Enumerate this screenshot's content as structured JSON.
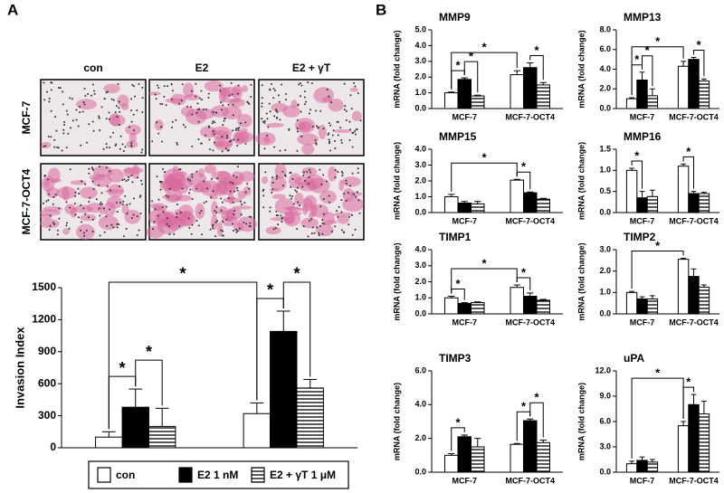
{
  "figure": {
    "panel_a": "A",
    "panel_b": "B",
    "image_columns": [
      "con",
      "E2",
      "E2 + γT"
    ],
    "image_rows": [
      "MCF-7",
      "MCF-7-OCT4"
    ]
  },
  "chart_data": [
    {
      "type": "bar",
      "ylabel": "Invasion Index",
      "categories": [
        "MCF-7",
        "MCF-7-OCT4"
      ],
      "series": [
        {
          "name": "con",
          "color": "#ffffff",
          "values": [
            100,
            320
          ],
          "error": [
            50,
            100
          ]
        },
        {
          "name": "E2 1 nM",
          "color": "#000000",
          "values": [
            380,
            1090
          ],
          "error": [
            170,
            190
          ]
        },
        {
          "name": "E2 + γT 1 μM",
          "color": "#ffffff",
          "hatch": true,
          "values": [
            200,
            560
          ],
          "error": [
            170,
            80
          ]
        }
      ],
      "ylim": [
        0,
        1500
      ],
      "yticks": [
        0,
        300,
        600,
        900,
        1200,
        1500
      ],
      "legend": "bottom",
      "brackets": [
        {
          "label": "*",
          "from": [
            0,
            0
          ],
          "to": [
            0,
            1
          ]
        },
        {
          "label": "*",
          "from": [
            0,
            1
          ],
          "to": [
            0,
            2
          ]
        },
        {
          "label": "*",
          "from": [
            1,
            0
          ],
          "to": [
            1,
            1
          ]
        },
        {
          "label": "*",
          "from": [
            1,
            1
          ],
          "to": [
            1,
            2
          ]
        },
        {
          "label": "*",
          "from": [
            0,
            0
          ],
          "to": [
            1,
            0
          ]
        }
      ]
    },
    {
      "type": "bar",
      "title": "MMP9",
      "ylabel": "mRNA (fold change)",
      "categories": [
        "MCF-7",
        "MCF-7-OCT4"
      ],
      "series": [
        {
          "color": "#ffffff",
          "values": [
            1.0,
            2.15
          ],
          "error": [
            0.05,
            0.25
          ]
        },
        {
          "color": "#000000",
          "values": [
            1.85,
            2.6
          ],
          "error": [
            0.1,
            0.3
          ]
        },
        {
          "color": "#ffffff",
          "hatch": true,
          "values": [
            0.8,
            1.5
          ],
          "error": [
            0.05,
            0.15
          ]
        }
      ],
      "ylim": [
        0,
        5
      ],
      "yticks": [
        {
          "value": 0,
          "label": "0.0"
        },
        {
          "value": 1,
          "label": "1.0"
        },
        {
          "value": 2,
          "label": "2.0"
        },
        {
          "value": 3,
          "label": "3.0"
        },
        {
          "value": 4,
          "label": "4.0"
        },
        {
          "value": 5,
          "label": "5.0"
        }
      ],
      "brackets": [
        {
          "label": "*",
          "from": [
            0,
            0
          ],
          "to": [
            0,
            1
          ]
        },
        {
          "label": "*",
          "from": [
            0,
            1
          ],
          "to": [
            0,
            2
          ]
        },
        {
          "label": "*",
          "from": [
            1,
            1
          ],
          "to": [
            1,
            2
          ]
        },
        {
          "label": "*",
          "from": [
            0,
            0
          ],
          "to": [
            1,
            0
          ]
        }
      ]
    },
    {
      "type": "bar",
      "title": "MMP13",
      "ylabel": "mRNA (fold change)",
      "categories": [
        "MCF-7",
        "MCF-7-OCT4"
      ],
      "series": [
        {
          "color": "#ffffff",
          "values": [
            1.0,
            4.3
          ],
          "error": [
            0.1,
            0.5
          ]
        },
        {
          "color": "#000000",
          "values": [
            2.9,
            5.0
          ],
          "error": [
            0.8,
            0.2
          ]
        },
        {
          "color": "#ffffff",
          "hatch": true,
          "values": [
            1.3,
            2.8
          ],
          "error": [
            0.7,
            0.2
          ]
        }
      ],
      "ylim": [
        0,
        8
      ],
      "yticks": [
        {
          "value": 0,
          "label": "0.0"
        },
        {
          "value": 2,
          "label": "2.0"
        },
        {
          "value": 4,
          "label": "4.0"
        },
        {
          "value": 6,
          "label": "6.0"
        },
        {
          "value": 8,
          "label": "8.0"
        }
      ],
      "brackets": [
        {
          "label": "*",
          "from": [
            0,
            0
          ],
          "to": [
            0,
            1
          ]
        },
        {
          "label": "*",
          "from": [
            0,
            1
          ],
          "to": [
            0,
            2
          ]
        },
        {
          "label": "*",
          "from": [
            1,
            1
          ],
          "to": [
            1,
            2
          ]
        },
        {
          "label": "*",
          "from": [
            0,
            0
          ],
          "to": [
            1,
            0
          ]
        }
      ]
    },
    {
      "type": "bar",
      "title": "MMP15",
      "ylabel": "mRNA (fold change)",
      "categories": [
        "MCF-7",
        "MCF-7-OCT4"
      ],
      "series": [
        {
          "color": "#ffffff",
          "values": [
            1.0,
            2.05
          ],
          "error": [
            0.15,
            0.05
          ]
        },
        {
          "color": "#000000",
          "values": [
            0.6,
            1.25
          ],
          "error": [
            0.1,
            0.05
          ]
        },
        {
          "color": "#ffffff",
          "hatch": true,
          "values": [
            0.55,
            0.85
          ],
          "error": [
            0.15,
            0.05
          ]
        }
      ],
      "ylim": [
        0,
        4
      ],
      "yticks": [
        {
          "value": 0,
          "label": "0.0"
        },
        {
          "value": 1,
          "label": "1.0"
        },
        {
          "value": 2,
          "label": "2.0"
        },
        {
          "value": 3,
          "label": "3.0"
        },
        {
          "value": 4,
          "label": "4.0"
        }
      ],
      "brackets": [
        {
          "label": "*",
          "from": [
            1,
            0
          ],
          "to": [
            1,
            1
          ]
        },
        {
          "label": "*",
          "from": [
            0,
            0
          ],
          "to": [
            1,
            0
          ]
        }
      ]
    },
    {
      "type": "bar",
      "title": "MMP16",
      "ylabel": "mRNA (fold change)",
      "categories": [
        "MCF-7",
        "MCF-7-OCT4"
      ],
      "series": [
        {
          "color": "#ffffff",
          "values": [
            1.0,
            1.1
          ],
          "error": [
            0.05,
            0.05
          ]
        },
        {
          "color": "#000000",
          "values": [
            0.35,
            0.45
          ],
          "error": [
            0.15,
            0.05
          ]
        },
        {
          "color": "#ffffff",
          "hatch": true,
          "values": [
            0.38,
            0.45
          ],
          "error": [
            0.15,
            0.03
          ]
        }
      ],
      "ylim": [
        0,
        1.5
      ],
      "yticks": [
        {
          "value": 0,
          "label": "0.0"
        },
        {
          "value": 0.5,
          "label": "0.5"
        },
        {
          "value": 1,
          "label": "1.0"
        },
        {
          "value": 1.5,
          "label": "1.5"
        }
      ],
      "brackets": [
        {
          "label": "*",
          "from": [
            0,
            0
          ],
          "to": [
            0,
            1
          ]
        },
        {
          "label": "*",
          "from": [
            1,
            0
          ],
          "to": [
            1,
            1
          ]
        }
      ]
    },
    {
      "type": "bar",
      "title": "TIMP1",
      "ylabel": "mRNA (fold change)",
      "categories": [
        "MCF-7",
        "MCF-7-OCT4"
      ],
      "series": [
        {
          "color": "#ffffff",
          "values": [
            1.0,
            1.65
          ],
          "error": [
            0.1,
            0.15
          ]
        },
        {
          "color": "#000000",
          "values": [
            0.65,
            1.1
          ],
          "error": [
            0.05,
            0.2
          ]
        },
        {
          "color": "#ffffff",
          "hatch": true,
          "values": [
            0.7,
            0.85
          ],
          "error": [
            0.05,
            0.05
          ]
        }
      ],
      "ylim": [
        0,
        4
      ],
      "yticks": [
        {
          "value": 0,
          "label": "0.0"
        },
        {
          "value": 1,
          "label": "1.0"
        },
        {
          "value": 2,
          "label": "2.0"
        },
        {
          "value": 3,
          "label": "3.0"
        },
        {
          "value": 4,
          "label": "4.0"
        }
      ],
      "brackets": [
        {
          "label": "*",
          "from": [
            0,
            0
          ],
          "to": [
            0,
            1
          ]
        },
        {
          "label": "*",
          "from": [
            1,
            0
          ],
          "to": [
            1,
            1
          ]
        },
        {
          "label": "*",
          "from": [
            0,
            0
          ],
          "to": [
            1,
            0
          ]
        }
      ]
    },
    {
      "type": "bar",
      "title": "TIMP2",
      "ylabel": "mRNA (fold change)",
      "categories": [
        "MCF-7",
        "MCF-7-OCT4"
      ],
      "series": [
        {
          "color": "#ffffff",
          "values": [
            1.0,
            2.55
          ],
          "error": [
            0.05,
            0.05
          ]
        },
        {
          "color": "#000000",
          "values": [
            0.7,
            1.75
          ],
          "error": [
            0.1,
            0.35
          ]
        },
        {
          "color": "#ffffff",
          "hatch": true,
          "values": [
            0.7,
            1.25
          ],
          "error": [
            0.15,
            0.1
          ]
        }
      ],
      "ylim": [
        0,
        3
      ],
      "yticks": [
        {
          "value": 0,
          "label": "0.0"
        },
        {
          "value": 1,
          "label": "1.0"
        },
        {
          "value": 2,
          "label": "2.0"
        },
        {
          "value": 3,
          "label": "3.0"
        }
      ],
      "brackets": [
        {
          "label": "*",
          "from": [
            0,
            0
          ],
          "to": [
            1,
            0
          ]
        }
      ]
    },
    {
      "type": "bar",
      "title": "TIMP3",
      "ylabel": "mRNA (fold change)",
      "categories": [
        "MCF-7",
        "MCF-7-OCT4"
      ],
      "series": [
        {
          "color": "#ffffff",
          "values": [
            1.0,
            1.65
          ],
          "error": [
            0.1,
            0.05
          ]
        },
        {
          "color": "#000000",
          "values": [
            2.1,
            3.05
          ],
          "error": [
            0.1,
            0.1
          ]
        },
        {
          "color": "#ffffff",
          "hatch": true,
          "values": [
            1.5,
            1.75
          ],
          "error": [
            0.5,
            0.15
          ]
        }
      ],
      "ylim": [
        0,
        6
      ],
      "yticks": [
        {
          "value": 0,
          "label": "0.0"
        },
        {
          "value": 2,
          "label": "2.0"
        },
        {
          "value": 4,
          "label": "4.0"
        },
        {
          "value": 6,
          "label": "6.0"
        }
      ],
      "brackets": [
        {
          "label": "*",
          "from": [
            0,
            0
          ],
          "to": [
            0,
            1
          ]
        },
        {
          "label": "*",
          "from": [
            1,
            0
          ],
          "to": [
            1,
            1
          ]
        },
        {
          "label": "*",
          "from": [
            1,
            1
          ],
          "to": [
            1,
            2
          ]
        }
      ]
    },
    {
      "type": "bar",
      "title": "uPA",
      "ylabel": "mRNA (fold change)",
      "categories": [
        "MCF-7",
        "MCF-7-OCT4"
      ],
      "series": [
        {
          "color": "#ffffff",
          "values": [
            1.0,
            5.5
          ],
          "error": [
            0.3,
            0.5
          ]
        },
        {
          "color": "#000000",
          "values": [
            1.4,
            8.0
          ],
          "error": [
            0.4,
            1.2
          ]
        },
        {
          "color": "#ffffff",
          "hatch": true,
          "values": [
            1.2,
            6.9
          ],
          "error": [
            0.3,
            1.5
          ]
        }
      ],
      "ylim": [
        0,
        12
      ],
      "yticks": [
        {
          "value": 0,
          "label": "0.0"
        },
        {
          "value": 3,
          "label": "3.0"
        },
        {
          "value": 6,
          "label": "6.0"
        },
        {
          "value": 9,
          "label": "9.0"
        },
        {
          "value": 12,
          "label": "12.0"
        }
      ],
      "brackets": [
        {
          "label": "*",
          "from": [
            1,
            0
          ],
          "to": [
            1,
            1
          ]
        },
        {
          "label": "*",
          "from": [
            0,
            0
          ],
          "to": [
            1,
            0
          ]
        }
      ]
    }
  ]
}
